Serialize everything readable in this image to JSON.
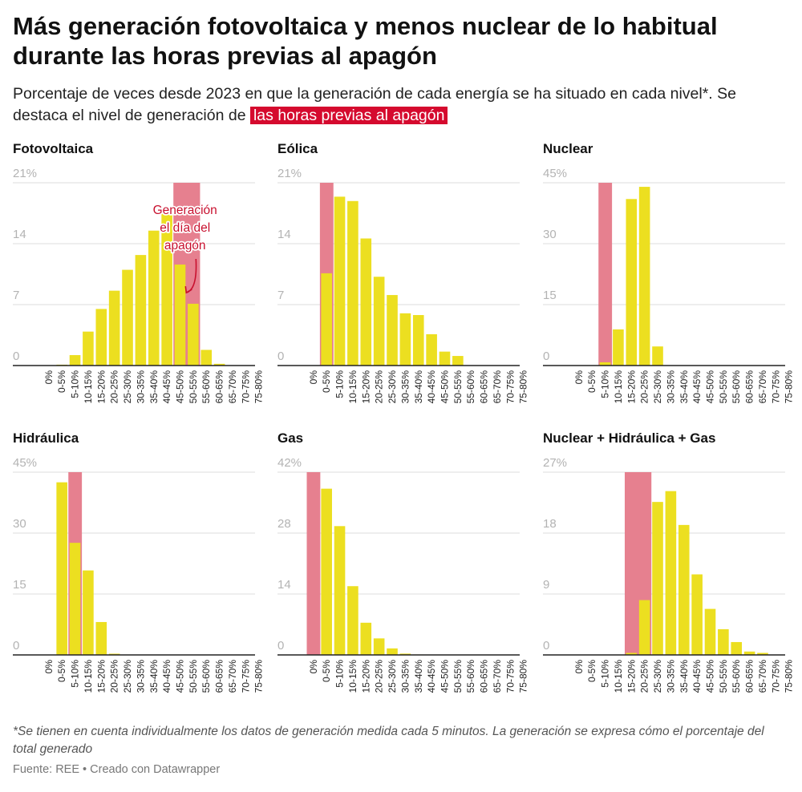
{
  "header": {
    "title_line1": "Más generación fotovoltaica y menos nuclear de lo habitual",
    "title_line2": "durante las horas previas al apagón",
    "subtitle_prefix": "Porcentaje de veces desde 2023 en que la generación de cada energía se ha situado en cada nivel*. Se destaca el nivel de generación de ",
    "subtitle_highlight": "las horas previas al apagón"
  },
  "colors": {
    "bar": "#ecdf20",
    "highlight": "#e6808f",
    "annotation": "#c8102e",
    "grid": "#dddddd",
    "axis": "#222222",
    "tick": "#b3b3b3"
  },
  "chart_data": [
    {
      "type": "bar",
      "title": "Fotovoltaica",
      "categories": [
        "0%",
        "0-5%",
        "5-10%",
        "10-15%",
        "15-20%",
        "20-25%",
        "25-30%",
        "30-35%",
        "35-40%",
        "40-45%",
        "45-50%",
        "50-55%",
        "55-60%",
        "60-65%",
        "65-70%",
        "70-75%",
        "75-80%"
      ],
      "values": [
        0,
        0.1,
        1.2,
        3.9,
        6.5,
        8.6,
        11.0,
        12.7,
        15.5,
        17.9,
        11.6,
        7.1,
        1.8,
        0.2,
        0,
        0,
        0
      ],
      "highlight_range": [
        10,
        11
      ],
      "ylim": [
        0,
        21
      ],
      "yticks": [
        0,
        7,
        14,
        21
      ],
      "ytick_labels": [
        "0",
        "7",
        "14",
        "21%"
      ],
      "annotation": {
        "lines": [
          "Generación",
          "el día del",
          "apagón"
        ]
      }
    },
    {
      "type": "bar",
      "title": "Eólica",
      "categories": [
        "0%",
        "0-5%",
        "5-10%",
        "10-15%",
        "15-20%",
        "20-25%",
        "25-30%",
        "30-35%",
        "35-40%",
        "40-45%",
        "45-50%",
        "50-55%",
        "55-60%",
        "60-65%",
        "65-70%",
        "70-75%",
        "75-80%"
      ],
      "values": [
        0,
        10.6,
        19.4,
        18.9,
        14.6,
        10.2,
        8.1,
        6.0,
        5.8,
        3.6,
        1.6,
        1.1,
        0,
        0,
        0,
        0,
        0
      ],
      "highlight_range": [
        1,
        1
      ],
      "ylim": [
        0,
        21
      ],
      "yticks": [
        0,
        7,
        14,
        21
      ],
      "ytick_labels": [
        "0",
        "7",
        "14",
        "21%"
      ]
    },
    {
      "type": "bar",
      "title": "Nuclear",
      "categories": [
        "0%",
        "0-5%",
        "5-10%",
        "10-15%",
        "15-20%",
        "20-25%",
        "25-30%",
        "30-35%",
        "35-40%",
        "40-45%",
        "45-50%",
        "50-55%",
        "55-60%",
        "60-65%",
        "65-70%",
        "70-75%",
        "75-80%"
      ],
      "values": [
        0,
        0,
        0.8,
        8.9,
        41.0,
        44.0,
        4.7,
        0,
        0,
        0,
        0,
        0,
        0,
        0,
        0,
        0,
        0
      ],
      "highlight_range": [
        2,
        2
      ],
      "ylim": [
        0,
        45
      ],
      "yticks": [
        0,
        15,
        30,
        45
      ],
      "ytick_labels": [
        "0",
        "15",
        "30",
        "45%"
      ]
    },
    {
      "type": "bar",
      "title": "Hidráulica",
      "categories": [
        "0%",
        "0-5%",
        "5-10%",
        "10-15%",
        "15-20%",
        "20-25%",
        "25-30%",
        "30-35%",
        "35-40%",
        "40-45%",
        "45-50%",
        "50-55%",
        "55-60%",
        "60-65%",
        "65-70%",
        "70-75%",
        "75-80%"
      ],
      "values": [
        0,
        42.5,
        27.6,
        20.8,
        8.1,
        0.3,
        0,
        0,
        0,
        0,
        0,
        0,
        0,
        0,
        0,
        0,
        0
      ],
      "highlight_range": [
        2,
        2
      ],
      "ylim": [
        0,
        45
      ],
      "yticks": [
        0,
        15,
        30,
        45
      ],
      "ytick_labels": [
        "0",
        "15",
        "30",
        "45%"
      ]
    },
    {
      "type": "bar",
      "title": "Gas",
      "categories": [
        "0%",
        "0-5%",
        "5-10%",
        "10-15%",
        "15-20%",
        "20-25%",
        "25-30%",
        "30-35%",
        "35-40%",
        "40-45%",
        "45-50%",
        "50-55%",
        "55-60%",
        "60-65%",
        "65-70%",
        "70-75%",
        "75-80%"
      ],
      "values": [
        0,
        38.2,
        29.6,
        15.8,
        7.4,
        3.8,
        1.5,
        0.3,
        0.1,
        0,
        0,
        0,
        0,
        0,
        0,
        0,
        0
      ],
      "highlight_range": [
        0,
        0
      ],
      "ylim": [
        0,
        42
      ],
      "yticks": [
        0,
        14,
        28,
        42
      ],
      "ytick_labels": [
        "0",
        "14",
        "28",
        "42%"
      ]
    },
    {
      "type": "bar",
      "title": "Nuclear + Hidráulica + Gas",
      "categories": [
        "0%",
        "0-5%",
        "5-10%",
        "10-15%",
        "15-20%",
        "20-25%",
        "25-30%",
        "30-35%",
        "35-40%",
        "40-45%",
        "45-50%",
        "50-55%",
        "55-60%",
        "60-65%",
        "65-70%",
        "70-75%",
        "75-80%"
      ],
      "values": [
        0,
        0,
        0,
        0,
        0.3,
        8.1,
        22.6,
        24.2,
        19.2,
        11.9,
        6.8,
        3.8,
        1.9,
        0.5,
        0.3,
        0,
        0
      ],
      "highlight_range": [
        4,
        5
      ],
      "ylim": [
        0,
        27
      ],
      "yticks": [
        0,
        9,
        18,
        27
      ],
      "ytick_labels": [
        "0",
        "9",
        "18",
        "27%"
      ]
    }
  ],
  "footer": {
    "note": "*Se tienen en cuenta individualmente los datos de generación medida cada 5 minutos. La generación se expresa cómo el porcentaje del total generado",
    "source": "Fuente: REE",
    "separator": " • ",
    "credit": "Creado con Datawrapper"
  }
}
